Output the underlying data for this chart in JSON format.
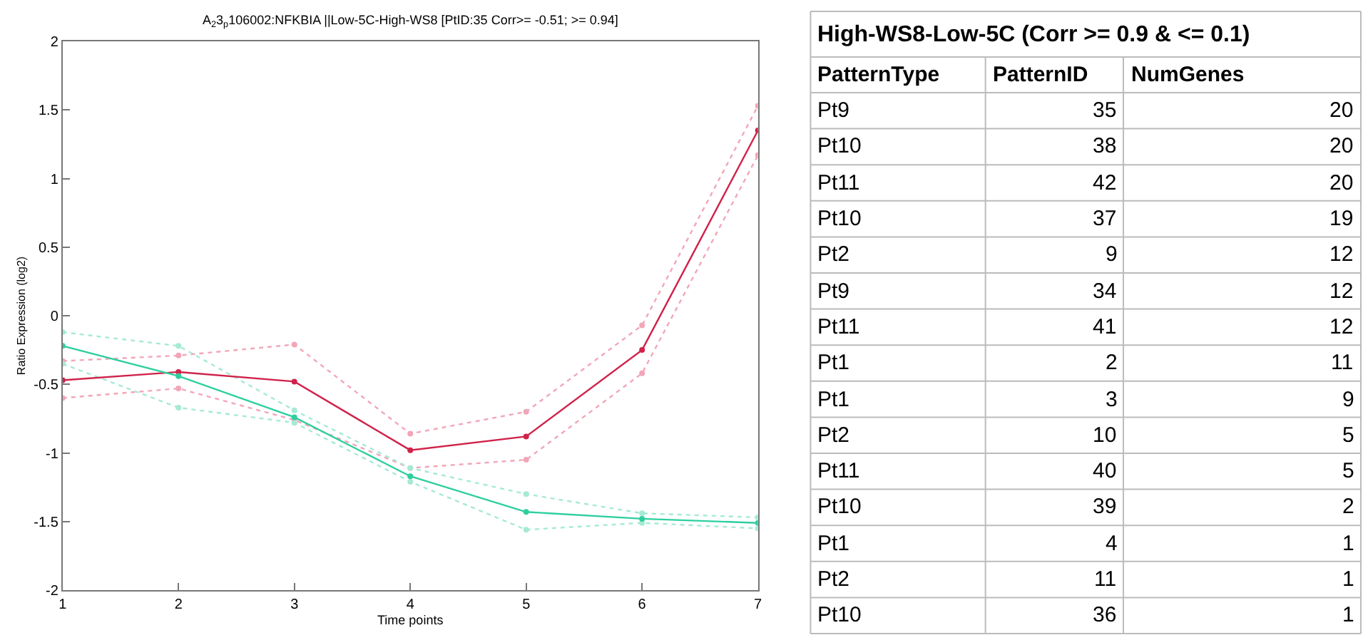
{
  "chart_data": [
    {
      "type": "line",
      "title": "A$_{2}$3$_{p}$106002:NFKBIA ||Low-5C-High-WS8 [PtID:35 Corr>= -0.51; >= 0.94]",
      "xlabel": "Time points",
      "ylabel": "Ratio Expression (log2)",
      "x": [
        1,
        2,
        3,
        4,
        5,
        6,
        7
      ],
      "series": [
        {
          "color": "#f2a6b8",
          "line_style": "dotted",
          "values": [
            -0.6,
            -0.53,
            -0.76,
            -1.11,
            -1.05,
            -0.42,
            1.17
          ]
        },
        {
          "color": "#f2a6b8",
          "line_style": "dotted",
          "values": [
            -0.33,
            -0.29,
            -0.21,
            -0.86,
            -0.7,
            -0.07,
            1.53
          ]
        },
        {
          "color": "#a6ead5",
          "line_style": "dotted",
          "values": [
            -0.35,
            -0.67,
            -0.78,
            -1.21,
            -1.56,
            -1.51,
            -1.55
          ]
        },
        {
          "color": "#a6ead5",
          "line_style": "dotted",
          "values": [
            -0.12,
            -0.22,
            -0.69,
            -1.11,
            -1.3,
            -1.44,
            -1.47
          ]
        },
        {
          "color": "#d0234a",
          "values": [
            -0.47,
            -0.41,
            -0.48,
            -0.98,
            -0.88,
            -0.25,
            1.35
          ]
        },
        {
          "color": "#2ecf9f",
          "values": [
            -0.22,
            -0.44,
            -0.74,
            -1.17,
            -1.43,
            -1.48,
            -1.51
          ]
        }
      ],
      "xlim": [
        1,
        7
      ],
      "xticks": [
        1,
        2,
        3,
        4,
        5,
        6,
        7
      ],
      "ylim": [
        -2,
        2
      ],
      "yticks": [
        -2,
        -1.5,
        -1,
        -0.5,
        0,
        0.5,
        1,
        1.5,
        2
      ],
      "marker": "circle",
      "line_style": "solid"
    },
    {
      "type": "other",
      "title": "High-WS8-Low-5C (Corr >= 0.9 & <= 0.1)",
      "categories": [
        "PatternType",
        "PatternID",
        "NumGenes"
      ],
      "y_categories": [
        "Pt9",
        "Pt10",
        "Pt11",
        "Pt10",
        "Pt2",
        "Pt9",
        "Pt11",
        "Pt1",
        "Pt1",
        "Pt2",
        "Pt11",
        "Pt10",
        "Pt1",
        "Pt2",
        "Pt10"
      ],
      "cell_labels": [
        [
          "35",
          "20"
        ],
        [
          "38",
          "20"
        ],
        [
          "42",
          "20"
        ],
        [
          "37",
          "19"
        ],
        [
          "9",
          "12"
        ],
        [
          "34",
          "12"
        ],
        [
          "41",
          "12"
        ],
        [
          "2",
          "11"
        ],
        [
          "3",
          "9"
        ],
        [
          "10",
          "5"
        ],
        [
          "40",
          "5"
        ],
        [
          "39",
          "2"
        ],
        [
          "4",
          "1"
        ],
        [
          "11",
          "1"
        ],
        [
          "36",
          "1"
        ]
      ]
    }
  ]
}
